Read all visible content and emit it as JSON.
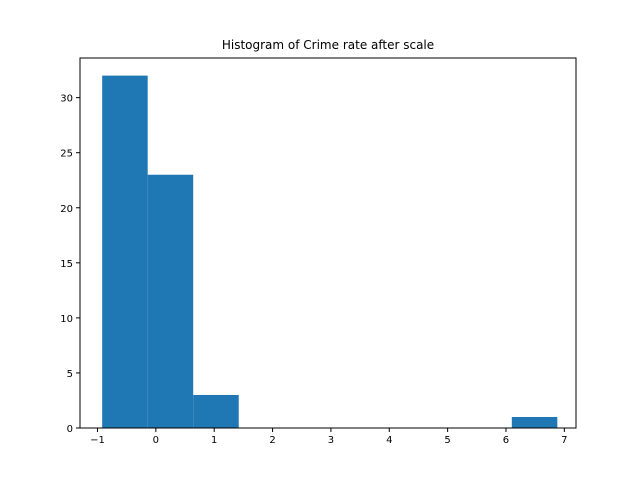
{
  "chart_data": {
    "type": "bar",
    "title": "Histogram of Crime rate after scale",
    "xlabel": "",
    "ylabel": "",
    "xlim": [
      -1.3,
      7.2
    ],
    "ylim": [
      0,
      33.6
    ],
    "grid": false,
    "bar_color": "#1f77b4",
    "bins": [
      {
        "x0": -0.92,
        "x1": -0.14,
        "count": 32
      },
      {
        "x0": -0.14,
        "x1": 0.64,
        "count": 23
      },
      {
        "x0": 0.64,
        "x1": 1.42,
        "count": 3
      },
      {
        "x0": 1.42,
        "x1": 2.2,
        "count": 0
      },
      {
        "x0": 2.2,
        "x1": 2.98,
        "count": 0
      },
      {
        "x0": 2.98,
        "x1": 3.76,
        "count": 0
      },
      {
        "x0": 3.76,
        "x1": 4.54,
        "count": 0
      },
      {
        "x0": 4.54,
        "x1": 5.32,
        "count": 0
      },
      {
        "x0": 5.32,
        "x1": 6.1,
        "count": 0
      },
      {
        "x0": 6.1,
        "x1": 6.88,
        "count": 1
      }
    ],
    "xticks": [
      -1,
      0,
      1,
      2,
      3,
      4,
      5,
      6,
      7
    ],
    "yticks": [
      0,
      5,
      10,
      15,
      20,
      25,
      30
    ]
  }
}
